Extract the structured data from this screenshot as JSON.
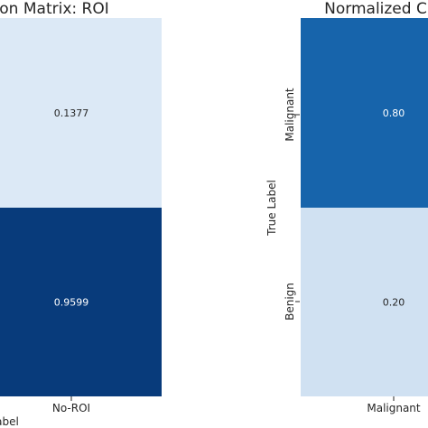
{
  "chart_data": [
    {
      "type": "heatmap",
      "title": "on Matrix: ROI",
      "xlabel": "abel",
      "x_tick_labels": [
        "No-ROI"
      ],
      "values": [
        [
          0.1377
        ],
        [
          0.9599
        ]
      ],
      "cell_labels": [
        [
          "0.1377"
        ],
        [
          "0.9599"
        ]
      ],
      "colormap": "Blues",
      "value_range": [
        0,
        1
      ]
    },
    {
      "type": "heatmap",
      "title": "Normalized C",
      "ylabel": "True Label",
      "y_tick_labels": [
        "Malignant",
        "Benign"
      ],
      "x_tick_labels": [
        "Malignant"
      ],
      "values": [
        [
          0.8
        ],
        [
          0.2
        ]
      ],
      "cell_labels": [
        [
          "0.80"
        ],
        [
          "0.20"
        ]
      ],
      "colormap": "Blues",
      "value_range": [
        0,
        1
      ]
    }
  ]
}
